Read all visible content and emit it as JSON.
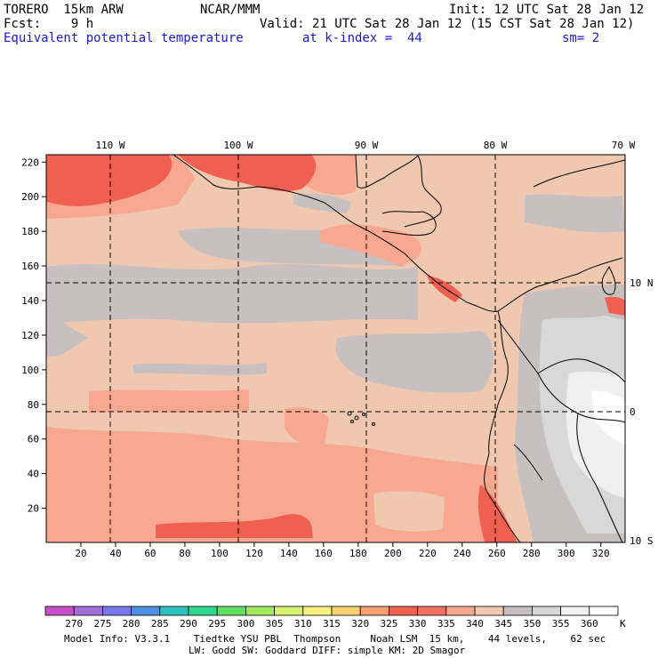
{
  "header": {
    "model": "TORERO  15km ARW",
    "center": "NCAR/MMM",
    "init": "Init: 12 UTC Sat 28 Jan 12",
    "fcst": "Fcst:    9 h",
    "valid": "Valid: 21 UTC Sat 28 Jan 12 (15 CST Sat 28 Jan 12)",
    "field": "Equivalent potential temperature",
    "level": "at k-index =  44",
    "smooth": "sm= 2"
  },
  "map": {
    "longitude_labels": [
      "110 W",
      "100 W",
      "90 W",
      "80 W",
      "70 W"
    ],
    "latitude_labels": [
      "10 N",
      "0",
      "10 S"
    ],
    "y_ticks": [
      "220",
      "200",
      "180",
      "160",
      "140",
      "120",
      "100",
      "80",
      "60",
      "40",
      "20"
    ],
    "x_ticks": [
      "20",
      "40",
      "60",
      "80",
      "100",
      "120",
      "140",
      "160",
      "180",
      "200",
      "220",
      "240",
      "260",
      "280",
      "300",
      "320"
    ]
  },
  "colorbar": {
    "unit": "K",
    "labels": [
      "270",
      "275",
      "280",
      "285",
      "290",
      "295",
      "300",
      "305",
      "310",
      "315",
      "320",
      "325",
      "330",
      "335",
      "340",
      "345",
      "350",
      "355",
      "360"
    ],
    "colors": [
      "#c850c8",
      "#a070d8",
      "#7878e8",
      "#5090e0",
      "#30c0c0",
      "#30d890",
      "#60e060",
      "#a0e860",
      "#d8f070",
      "#f8f080",
      "#f8d070",
      "#f8a070",
      "#f06050",
      "#f07060",
      "#f8a890",
      "#f0c8b0",
      "#c8c0c0",
      "#d8d8d8",
      "#f0f0f0",
      "#ffffff"
    ]
  },
  "footer": {
    "line1": "Model Info: V3.3.1    Tiedtke YSU PBL  Thompson     Noah LSM  15 km,    44 levels,    62 sec",
    "line2": "LW: Godd SW: Goddard DIFF: simple KM: 2D Smagor"
  }
}
